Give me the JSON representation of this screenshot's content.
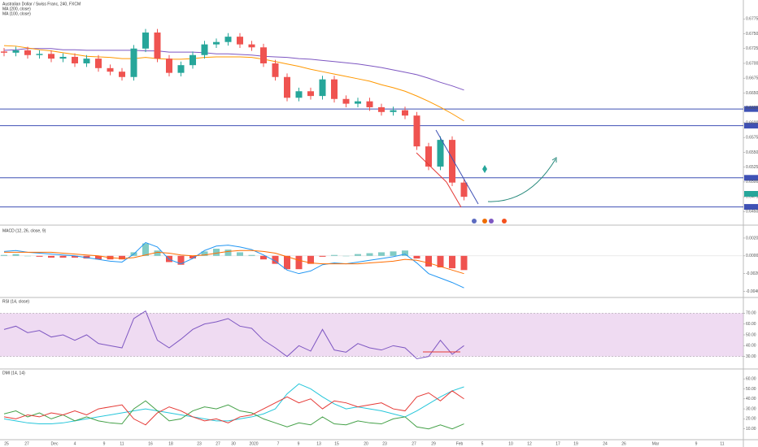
{
  "chart_data": [
    {
      "type": "candlestick",
      "title": "Australian Dollar / Swiss Franc, 240, FXCM",
      "up_color": "#26a69a",
      "down_color": "#ef5350",
      "open": [
        0.672,
        0.6718,
        0.6722,
        0.6714,
        0.6716,
        0.6708,
        0.6711,
        0.67,
        0.6708,
        0.6692,
        0.6686,
        0.6677,
        0.6725,
        0.6752,
        0.6708,
        0.6684,
        0.6697,
        0.6714,
        0.6732,
        0.6736,
        0.6745,
        0.6732,
        0.6727,
        0.67,
        0.6677,
        0.6642,
        0.6653,
        0.6645,
        0.6673,
        0.664,
        0.6632,
        0.6636,
        0.6626,
        0.6618,
        0.6621,
        0.6612,
        0.656,
        0.6526,
        0.6571,
        0.6499
      ],
      "high": [
        0.6726,
        0.6728,
        0.6728,
        0.6722,
        0.6722,
        0.6717,
        0.6717,
        0.6714,
        0.6714,
        0.6698,
        0.6692,
        0.6731,
        0.6758,
        0.6758,
        0.6714,
        0.6703,
        0.672,
        0.6738,
        0.6742,
        0.6751,
        0.6751,
        0.6738,
        0.6733,
        0.6706,
        0.6683,
        0.6659,
        0.6659,
        0.6679,
        0.6679,
        0.6646,
        0.6642,
        0.6642,
        0.6632,
        0.6627,
        0.6627,
        0.6618,
        0.6566,
        0.6577,
        0.6577,
        0.6505
      ],
      "low": [
        0.6712,
        0.6712,
        0.6708,
        0.6708,
        0.6702,
        0.6702,
        0.6694,
        0.6694,
        0.6686,
        0.668,
        0.6671,
        0.6671,
        0.6719,
        0.6702,
        0.6678,
        0.6678,
        0.6691,
        0.6708,
        0.6726,
        0.673,
        0.6726,
        0.6721,
        0.6694,
        0.6671,
        0.6636,
        0.6636,
        0.6639,
        0.6639,
        0.6634,
        0.6626,
        0.6626,
        0.662,
        0.6612,
        0.6612,
        0.6606,
        0.6554,
        0.652,
        0.652,
        0.6493,
        0.6469
      ],
      "close": [
        0.6718,
        0.6722,
        0.6714,
        0.6716,
        0.6708,
        0.6711,
        0.67,
        0.6708,
        0.6692,
        0.6686,
        0.6677,
        0.6725,
        0.6752,
        0.6708,
        0.6684,
        0.6697,
        0.6714,
        0.6732,
        0.6736,
        0.6745,
        0.6732,
        0.6727,
        0.67,
        0.6677,
        0.6642,
        0.6653,
        0.6645,
        0.6673,
        0.664,
        0.6632,
        0.6636,
        0.6626,
        0.6618,
        0.6621,
        0.6612,
        0.656,
        0.6526,
        0.6571,
        0.6499,
        0.6475
      ],
      "overlays": [
        {
          "name": "MA (200, close)",
          "color": "#7e57c2",
          "values": [
            0.6722,
            0.6723,
            0.6725,
            0.6725,
            0.6725,
            0.6723,
            0.6723,
            0.6722,
            0.6722,
            0.6722,
            0.6722,
            0.6722,
            0.6721,
            0.6721,
            0.6719,
            0.6719,
            0.6719,
            0.6718,
            0.6716,
            0.6716,
            0.6715,
            0.6714,
            0.6712,
            0.6711,
            0.671,
            0.6708,
            0.6707,
            0.6705,
            0.6703,
            0.6701,
            0.6699,
            0.6696,
            0.6693,
            0.6689,
            0.6685,
            0.6681,
            0.6675,
            0.6668,
            0.6662,
            0.6655
          ]
        },
        {
          "name": "MA (100, close)",
          "color": "#ff9800",
          "values": [
            0.673,
            0.6729,
            0.6726,
            0.6723,
            0.6721,
            0.6718,
            0.6715,
            0.6712,
            0.6711,
            0.671,
            0.6708,
            0.6708,
            0.671,
            0.6708,
            0.6707,
            0.6707,
            0.6708,
            0.671,
            0.6711,
            0.6711,
            0.6711,
            0.671,
            0.6707,
            0.6703,
            0.6699,
            0.6695,
            0.669,
            0.6686,
            0.6682,
            0.6678,
            0.6674,
            0.667,
            0.6664,
            0.6659,
            0.6653,
            0.6645,
            0.6636,
            0.6626,
            0.6615,
            0.6603
          ]
        }
      ],
      "levels": {
        "color": "#3f51b5",
        "values": [
          0.6623,
          0.6595,
          0.6507,
          0.6458
        ]
      },
      "ylim": [
        0.643,
        0.68
      ],
      "yticks": [
        {
          "value": 0.645,
          "label": "0.64500"
        },
        {
          "value": 0.6475,
          "label": "0.64750"
        },
        {
          "value": 0.65,
          "label": "0.65000"
        },
        {
          "value": 0.6525,
          "label": "0.65250"
        },
        {
          "value": 0.655,
          "label": "0.65500"
        },
        {
          "value": 0.6575,
          "label": "0.65750"
        },
        {
          "value": 0.66,
          "label": "0.66000"
        },
        {
          "value": 0.6625,
          "label": "0.66250"
        },
        {
          "value": 0.665,
          "label": "0.66500"
        },
        {
          "value": 0.6675,
          "label": "0.66750"
        },
        {
          "value": 0.67,
          "label": "0.67000"
        },
        {
          "value": 0.6725,
          "label": "0.67250"
        },
        {
          "value": 0.675,
          "label": "0.67500"
        },
        {
          "value": 0.6775,
          "label": "0.67750"
        }
      ],
      "time_axis_labels": [
        "25",
        "27",
        "Dec",
        "4",
        "9",
        "11",
        "16",
        "18",
        "23",
        "27",
        "30",
        "2020",
        "7",
        "9",
        "13",
        "15",
        "20",
        "23",
        "27",
        "29",
        "Feb",
        "5",
        "10",
        "12",
        "17",
        "19",
        "24",
        "26",
        "Mar",
        "9",
        "11"
      ]
    },
    {
      "type": "macd",
      "title": "MACD (12, 26, close, 9)",
      "series": [
        {
          "color": "#2196f3",
          "values": [
            0.0005,
            0.0006,
            0.0004,
            0.0003,
            0.0002,
            0.0001,
            0,
            -0.0002,
            -0.0004,
            -0.0006,
            -0.0007,
            0.0002,
            0.0015,
            0.001,
            -0.0004,
            -0.0009,
            -0.0003,
            0.0006,
            0.0011,
            0.0012,
            0.001,
            0.0007,
            0.0001,
            -0.0006,
            -0.0016,
            -0.002,
            -0.0017,
            -0.001,
            -0.0008,
            -0.0009,
            -0.0007,
            -0.0005,
            -0.0003,
            -0.0001,
            0.0002,
            -0.0008,
            -0.002,
            -0.0025,
            -0.003,
            -0.0036
          ]
        },
        {
          "color": "#ff6d00",
          "values": [
            0.0004,
            0.0004,
            0.0004,
            0.0004,
            0.0004,
            0.0003,
            0.0002,
            0.0001,
            0,
            -0.0002,
            -0.0003,
            -0.0002,
            0.0001,
            0.0004,
            0.0003,
            0.0001,
            0,
            0.0001,
            0.0003,
            0.0005,
            0.0006,
            0.0006,
            0.0005,
            0.0003,
            -0.0001,
            -0.0005,
            -0.0008,
            -0.0009,
            -0.0009,
            -0.0009,
            -0.0009,
            -0.0008,
            -0.0007,
            -0.0006,
            -0.0004,
            -0.0005,
            -0.0008,
            -0.0012,
            -0.0016,
            -0.002
          ]
        }
      ],
      "histogram": {
        "up_color": "#80cbc4",
        "down_color": "#ef5350",
        "values": [
          0.0001,
          0.0002,
          0,
          -0.0001,
          -0.0002,
          -0.0002,
          -0.0002,
          -0.0003,
          -0.0004,
          -0.0004,
          -0.0004,
          0.0004,
          0.0014,
          0.0006,
          -0.0007,
          -0.001,
          -0.0003,
          0.0005,
          0.0008,
          0.0007,
          0.0004,
          0.0001,
          -0.0004,
          -0.0009,
          -0.0015,
          -0.0015,
          -0.0009,
          -0.0001,
          0.0001,
          0,
          0.0002,
          0.0003,
          0.0004,
          0.0005,
          0.0006,
          -0.0003,
          -0.0012,
          -0.0013,
          -0.0014,
          -0.0016
        ]
      },
      "ylim": [
        -0.0045,
        0.003
      ],
      "yticks": [
        {
          "value": -0.004,
          "label": "-0.00400"
        },
        {
          "value": -0.002,
          "label": "-0.00200"
        },
        {
          "value": 0,
          "label": "0.00000"
        },
        {
          "value": 0.002,
          "label": "0.00200"
        }
      ]
    },
    {
      "type": "line",
      "title": "RSI (14, close)",
      "band": [
        30,
        70
      ],
      "band_color": "#e1bee7",
      "series": [
        {
          "color": "#7e57c2",
          "values": [
            55,
            58,
            52,
            54,
            48,
            50,
            45,
            50,
            42,
            40,
            38,
            65,
            72,
            45,
            38,
            46,
            55,
            60,
            62,
            65,
            58,
            56,
            45,
            38,
            30,
            40,
            35,
            55,
            36,
            34,
            42,
            38,
            36,
            40,
            38,
            28,
            30,
            45,
            32,
            40
          ]
        }
      ],
      "ylim": [
        20,
        80
      ],
      "yticks": [
        {
          "value": 30,
          "label": "30.00"
        },
        {
          "value": 40,
          "label": "40.00"
        },
        {
          "value": 50,
          "label": "50.00"
        },
        {
          "value": 60,
          "label": "60.00"
        },
        {
          "value": 70,
          "label": "70.00"
        }
      ]
    },
    {
      "type": "line",
      "title": "DMI (14, 14)",
      "series": [
        {
          "color": "#26c6da",
          "values": [
            20,
            18,
            16,
            15,
            15,
            16,
            18,
            20,
            22,
            24,
            26,
            28,
            30,
            28,
            26,
            24,
            22,
            20,
            18,
            18,
            20,
            22,
            25,
            30,
            45,
            55,
            50,
            42,
            35,
            30,
            32,
            30,
            28,
            25,
            22,
            28,
            35,
            42,
            48,
            52
          ]
        },
        {
          "color": "#43a047",
          "values": [
            25,
            28,
            22,
            26,
            20,
            24,
            18,
            22,
            18,
            16,
            15,
            30,
            38,
            28,
            18,
            20,
            28,
            32,
            30,
            34,
            28,
            26,
            20,
            16,
            12,
            16,
            14,
            22,
            15,
            14,
            18,
            16,
            15,
            20,
            22,
            12,
            10,
            14,
            10,
            15
          ]
        },
        {
          "color": "#e53935",
          "values": [
            22,
            20,
            24,
            22,
            26,
            24,
            28,
            24,
            30,
            32,
            34,
            20,
            14,
            26,
            32,
            28,
            22,
            18,
            20,
            16,
            22,
            24,
            30,
            36,
            42,
            36,
            40,
            30,
            38,
            36,
            32,
            34,
            36,
            30,
            28,
            42,
            46,
            38,
            48,
            40
          ]
        }
      ],
      "ylim": [
        0,
        65
      ],
      "yticks": [
        {
          "value": 10,
          "label": "10.00"
        },
        {
          "value": 20,
          "label": "20.00"
        },
        {
          "value": 30,
          "label": "30.00"
        },
        {
          "value": 40,
          "label": "40.00"
        },
        {
          "value": 50,
          "label": "50.00"
        },
        {
          "value": 60,
          "label": "60.00"
        }
      ]
    }
  ]
}
